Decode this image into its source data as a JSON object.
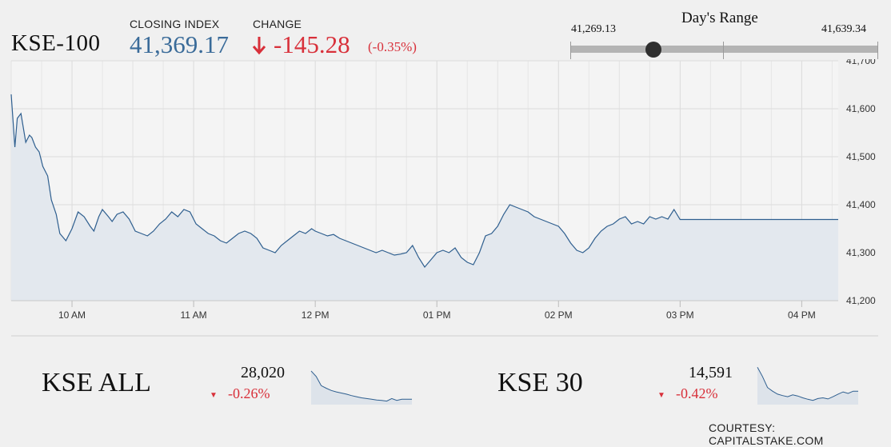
{
  "header": {
    "symbol": "KSE-100",
    "closing_label": "CLOSING INDEX",
    "closing_value": "41,369.17",
    "change_label": "CHANGE",
    "change_arrow_icon": "down-arrow-icon",
    "change_value": "-145.28",
    "change_pct": "(-0.35%)"
  },
  "day_range": {
    "title": "Day's Range",
    "low": "41,269.13",
    "high": "41,639.34",
    "low_value": 41269.13,
    "high_value": 41639.34,
    "current_value": 41369.17
  },
  "colors": {
    "accent_blue": "#3a6b99",
    "negative_red": "#d8303a",
    "line": "#2f5f8f",
    "area_fill": "#e3e8ee"
  },
  "chart_data": {
    "type": "area",
    "ylim": [
      41200,
      41700
    ],
    "yticks": [
      41200,
      41300,
      41400,
      41500,
      41600,
      41700
    ],
    "ytick_labels": [
      "41,200",
      "41,300",
      "41,400",
      "41,500",
      "41,600",
      "41,700"
    ],
    "xlim_hours": [
      9.5,
      16.3
    ],
    "xticks_hours": [
      10,
      11,
      12,
      13,
      14,
      15,
      16
    ],
    "xtick_labels": [
      "10 AM",
      "11 AM",
      "12 PM",
      "01 PM",
      "02 PM",
      "03 PM",
      "04 PM"
    ],
    "grid": true,
    "series": [
      {
        "x": [
          9.5,
          9.53,
          9.55,
          9.58,
          9.62,
          9.65,
          9.67,
          9.7,
          9.73,
          9.76,
          9.8,
          9.83,
          9.87,
          9.9,
          9.95,
          10.0,
          10.05,
          10.1,
          10.15,
          10.18,
          10.22,
          10.25,
          10.3,
          10.33,
          10.37,
          10.42,
          10.47,
          10.52,
          10.57,
          10.62,
          10.67,
          10.72,
          10.77,
          10.82,
          10.87,
          10.92,
          10.97,
          11.02,
          11.07,
          11.12,
          11.17,
          11.22,
          11.27,
          11.32,
          11.37,
          11.42,
          11.47,
          11.52,
          11.57,
          11.62,
          11.67,
          11.72,
          11.77,
          11.82,
          11.87,
          11.92,
          11.97,
          12.0,
          12.05,
          12.1,
          12.15,
          12.2,
          12.25,
          12.3,
          12.35,
          12.4,
          12.45,
          12.5,
          12.55,
          12.6,
          12.65,
          12.7,
          12.75,
          12.8,
          12.85,
          12.9,
          12.95,
          13.0,
          13.05,
          13.1,
          13.15,
          13.2,
          13.25,
          13.3,
          13.35,
          13.4,
          13.45,
          13.5,
          13.55,
          13.6,
          13.65,
          13.7,
          13.75,
          13.8,
          13.85,
          13.9,
          13.95,
          14.0,
          14.05,
          14.1,
          14.15,
          14.2,
          14.25,
          14.3,
          14.35,
          14.4,
          14.45,
          14.5,
          14.55,
          14.6,
          14.65,
          14.7,
          14.75,
          14.8,
          14.85,
          14.9,
          14.95,
          15.0,
          15.05,
          15.1,
          15.15,
          15.2,
          15.25,
          15.3,
          15.35,
          15.4,
          15.45,
          15.5,
          16.3
        ],
        "y": [
          41630,
          41520,
          41580,
          41590,
          41530,
          41545,
          41540,
          41520,
          41510,
          41480,
          41460,
          41410,
          41380,
          41340,
          41325,
          41350,
          41385,
          41375,
          41355,
          41345,
          41375,
          41390,
          41375,
          41365,
          41380,
          41385,
          41370,
          41345,
          41340,
          41335,
          41345,
          41360,
          41370,
          41385,
          41375,
          41390,
          41385,
          41360,
          41350,
          41340,
          41335,
          41325,
          41320,
          41330,
          41340,
          41345,
          41340,
          41330,
          41310,
          41305,
          41300,
          41315,
          41325,
          41335,
          41345,
          41340,
          41350,
          41345,
          41340,
          41335,
          41338,
          41330,
          41325,
          41320,
          41315,
          41310,
          41305,
          41300,
          41305,
          41300,
          41295,
          41297,
          41300,
          41315,
          41290,
          41270,
          41285,
          41300,
          41305,
          41300,
          41310,
          41290,
          41280,
          41275,
          41300,
          41335,
          41340,
          41355,
          41380,
          41400,
          41395,
          41390,
          41385,
          41375,
          41370,
          41365,
          41360,
          41355,
          41340,
          41320,
          41305,
          41300,
          41310,
          41330,
          41345,
          41355,
          41360,
          41370,
          41375,
          41360,
          41365,
          41360,
          41375,
          41370,
          41375,
          41370,
          41390,
          41369.17,
          41369.17,
          41369.17,
          41369.17,
          41369.17,
          41369.17,
          41369.17,
          41369.17,
          41369.17,
          41369.17,
          41369.17,
          41369.17
        ]
      }
    ]
  },
  "cards": [
    {
      "name": "KSE ALL",
      "value": "28,020",
      "change": "-0.26%",
      "change_icon": "down-triangle-icon",
      "spark": [
        0.85,
        0.7,
        0.45,
        0.38,
        0.32,
        0.28,
        0.25,
        0.22,
        0.18,
        0.15,
        0.12,
        0.1,
        0.08,
        0.06,
        0.05,
        0.03,
        0.1,
        0.05,
        0.08,
        0.08,
        0.08
      ]
    },
    {
      "name": "KSE 30",
      "value": "14,591",
      "change": "-0.42%",
      "change_icon": "down-triangle-icon",
      "spark": [
        0.95,
        0.7,
        0.4,
        0.3,
        0.22,
        0.18,
        0.15,
        0.2,
        0.17,
        0.12,
        0.08,
        0.05,
        0.1,
        0.12,
        0.09,
        0.15,
        0.22,
        0.28,
        0.24,
        0.3,
        0.3
      ]
    }
  ],
  "footer": {
    "courtesy": "COURTESY: CAPITALSTAKE.COM"
  }
}
